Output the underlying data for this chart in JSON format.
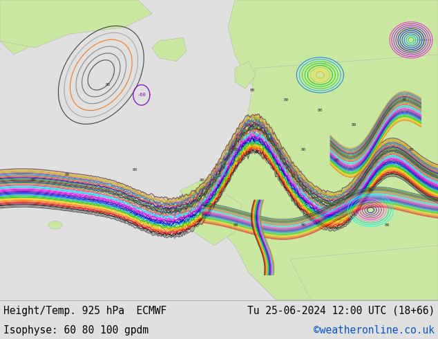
{
  "title_left": "Height/Temp. 925 hPa  ECMWF",
  "title_right": "Tu 25-06-2024 12:00 UTC (18+66)",
  "subtitle_left": "Isophyse: 60 80 100 gpdm",
  "subtitle_right": "©weatheronline.co.uk",
  "subtitle_right_color": "#0055cc",
  "text_color": "#000000",
  "font_family": "monospace",
  "title_fontsize": 10.5,
  "subtitle_fontsize": 10.5,
  "fig_width": 6.34,
  "fig_height": 4.9,
  "dpi": 100,
  "bottom_bar_color": "#e0e0e0",
  "ocean_color": "#e8e8e8",
  "land_color": "#c8e8a0",
  "land_color2": "#b0d890"
}
